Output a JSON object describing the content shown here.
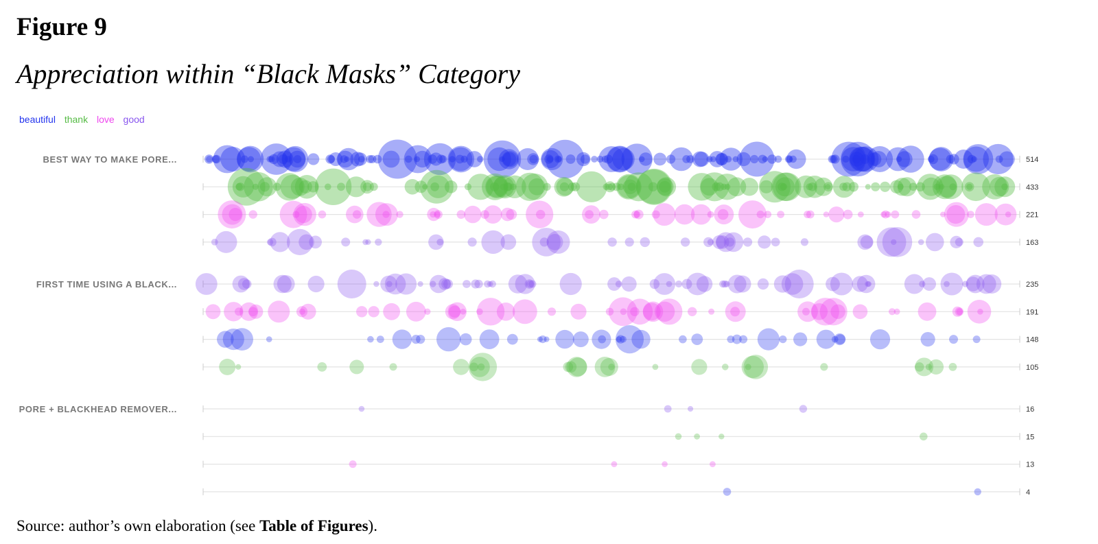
{
  "figure": {
    "number": "Figure 9",
    "title": "Appreciation within “Black Masks” Category",
    "source_prefix": "Source: author’s own elaboration (see ",
    "source_bold": "Table of Figures",
    "source_suffix": ")."
  },
  "chart_data": {
    "type": "scatter",
    "legend_placement": "top-left",
    "legend": [
      {
        "term": "beautiful",
        "color": "#2233ee"
      },
      {
        "term": "thank",
        "color": "#55bb44"
      },
      {
        "term": "love",
        "color": "#ee44ee"
      },
      {
        "term": "good",
        "color": "#8855ee"
      }
    ],
    "groups": [
      {
        "label": "BEST WAY TO MAKE PORE...",
        "rows": [
          {
            "term": "beautiful",
            "total": "514"
          },
          {
            "term": "thank",
            "total": "433"
          },
          {
            "term": "love",
            "total": "221"
          },
          {
            "term": "good",
            "total": "163"
          }
        ]
      },
      {
        "label": "FIRST TIME USING A BLACK...",
        "rows": [
          {
            "term": "good",
            "total": "235"
          },
          {
            "term": "love",
            "total": "191"
          },
          {
            "term": "beautiful",
            "total": "148"
          },
          {
            "term": "thank",
            "total": "105"
          }
        ]
      },
      {
        "label": "PORE + BLACKHEAD REMOVER...",
        "rows": [
          {
            "term": "good",
            "total": "16"
          },
          {
            "term": "thank",
            "total": "15"
          },
          {
            "term": "love",
            "total": "13"
          },
          {
            "term": "beautiful",
            "total": "4"
          }
        ]
      }
    ]
  }
}
